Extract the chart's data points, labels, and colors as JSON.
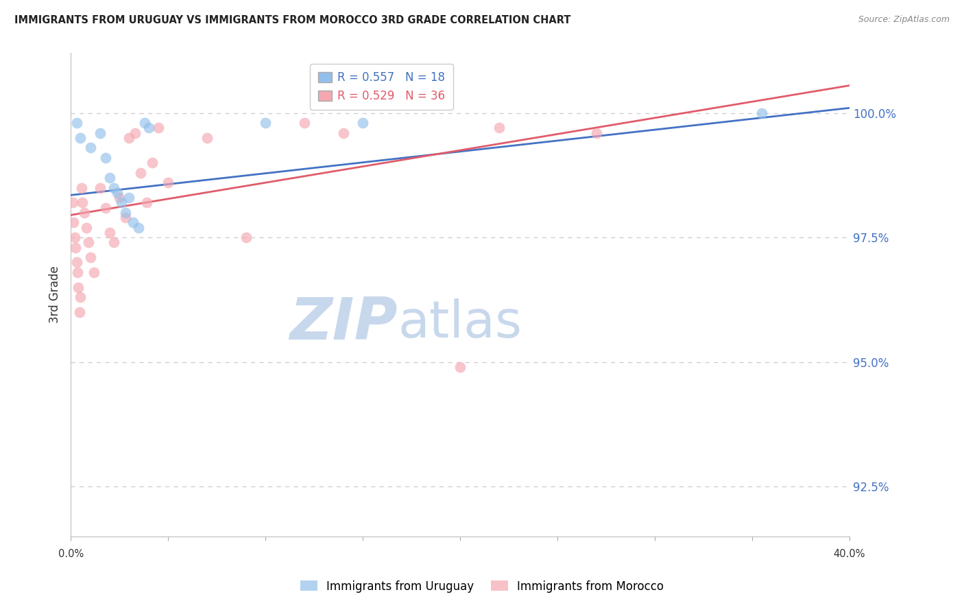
{
  "title": "IMMIGRANTS FROM URUGUAY VS IMMIGRANTS FROM MOROCCO 3RD GRADE CORRELATION CHART",
  "source": "Source: ZipAtlas.com",
  "ylabel": "3rd Grade",
  "y_ticks": [
    92.5,
    95.0,
    97.5,
    100.0
  ],
  "y_tick_labels": [
    "92.5%",
    "95.0%",
    "97.5%",
    "100.0%"
  ],
  "xlim": [
    0.0,
    40.0
  ],
  "ylim": [
    91.5,
    101.2
  ],
  "uruguay_R": 0.557,
  "uruguay_N": 18,
  "morocco_R": 0.529,
  "morocco_N": 36,
  "uruguay_color": "#92BFEA",
  "morocco_color": "#F4A7B0",
  "uruguay_line_color": "#4472C4",
  "morocco_line_color": "#E05B6A",
  "background_color": "#FFFFFF",
  "watermark_zip": "ZIP",
  "watermark_atlas": "atlas",
  "watermark_color_zip": "#C8D8EC",
  "watermark_color_atlas": "#C8D8EC",
  "uruguay_x": [
    0.3,
    0.5,
    1.0,
    1.5,
    1.8,
    2.0,
    2.2,
    2.4,
    2.6,
    2.8,
    3.0,
    3.2,
    3.5,
    3.8,
    4.0,
    10.0,
    15.0,
    35.5
  ],
  "uruguay_y": [
    99.8,
    99.5,
    99.3,
    99.6,
    99.1,
    98.7,
    98.5,
    98.4,
    98.2,
    98.0,
    98.3,
    97.8,
    97.7,
    99.8,
    99.7,
    99.8,
    99.8,
    100.0
  ],
  "morocco_x": [
    0.1,
    0.15,
    0.2,
    0.25,
    0.3,
    0.35,
    0.4,
    0.5,
    0.55,
    0.6,
    0.7,
    0.8,
    0.9,
    1.0,
    1.2,
    1.5,
    1.8,
    2.0,
    2.2,
    2.5,
    2.8,
    3.0,
    3.3,
    3.6,
    3.9,
    4.2,
    4.5,
    5.0,
    7.0,
    9.0,
    12.0,
    14.0,
    20.0,
    22.0,
    27.0,
    0.45
  ],
  "morocco_y": [
    98.2,
    97.8,
    97.5,
    97.3,
    97.0,
    96.8,
    96.5,
    96.3,
    98.5,
    98.2,
    98.0,
    97.7,
    97.4,
    97.1,
    96.8,
    98.5,
    98.1,
    97.6,
    97.4,
    98.3,
    97.9,
    99.5,
    99.6,
    98.8,
    98.2,
    99.0,
    99.7,
    98.6,
    99.5,
    97.5,
    99.8,
    99.6,
    94.9,
    99.7,
    99.6,
    96.0
  ],
  "x_tick_positions": [
    0,
    5,
    10,
    15,
    20,
    25,
    30,
    35,
    40
  ]
}
